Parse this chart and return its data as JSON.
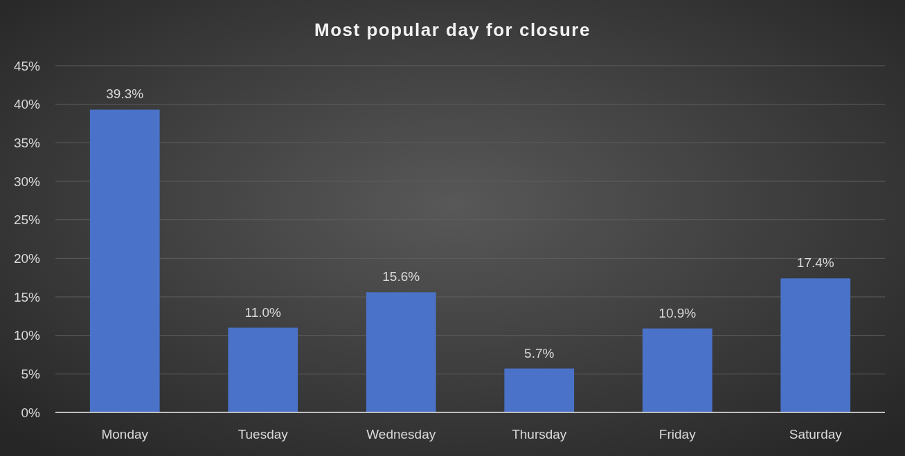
{
  "chart_data": {
    "type": "bar",
    "title": "Most popular day for closure",
    "categories": [
      "Monday",
      "Tuesday",
      "Wednesday",
      "Thursday",
      "Friday",
      "Saturday"
    ],
    "values": [
      39.3,
      11.0,
      15.6,
      5.7,
      10.9,
      17.4
    ],
    "value_labels": [
      "39.3%",
      "11.0%",
      "15.6%",
      "5.7%",
      "10.9%",
      "17.4%"
    ],
    "color": "#4a72c8",
    "ylim": [
      0,
      45
    ],
    "yticks": [
      {
        "value": 0,
        "label": "0%"
      },
      {
        "value": 5,
        "label": "5%"
      },
      {
        "value": 10,
        "label": "10%"
      },
      {
        "value": 15,
        "label": "15%"
      },
      {
        "value": 20,
        "label": "20%"
      },
      {
        "value": 25,
        "label": "25%"
      },
      {
        "value": 30,
        "label": "30%"
      },
      {
        "value": 35,
        "label": "35%"
      },
      {
        "value": 40,
        "label": "40%"
      },
      {
        "value": 45,
        "label": "45%"
      }
    ],
    "grid": "y"
  }
}
